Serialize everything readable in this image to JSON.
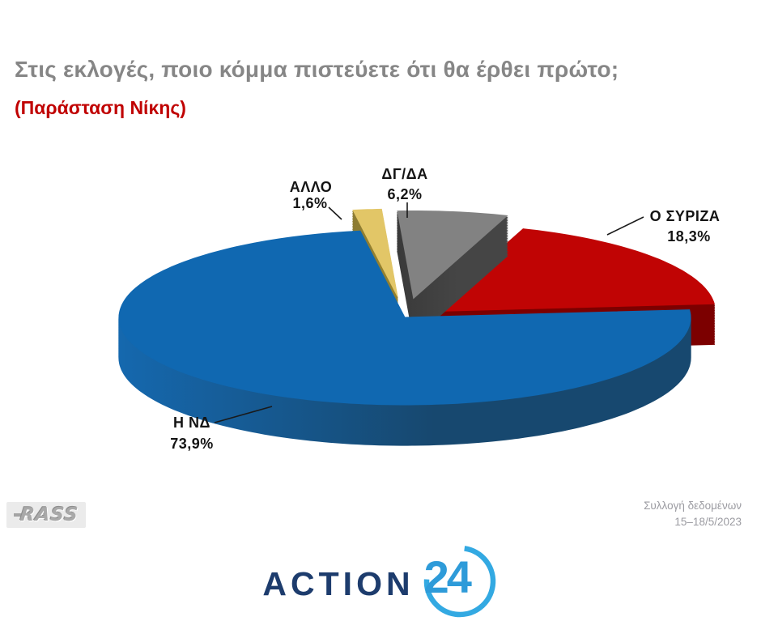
{
  "header": {
    "title": "Στις εκλογές, ποιο κόμμα πιστεύετε ότι θα έρθει πρώτο;",
    "subtitle": "(Παράσταση Νίκης)"
  },
  "chart_data": {
    "type": "pie",
    "style": "3d-exploded",
    "title": "Στις εκλογές, ποιο κόμμα πιστεύετε ότι θα έρθει πρώτο; (Παράσταση Νίκης)",
    "value_unit": "%",
    "labels_position": "outside-with-leader-lines",
    "legend": "none",
    "slices": [
      {
        "label": "Ο ΣΥΡΙΖΑ",
        "value": 18.3,
        "display_value": "18,3%",
        "color": "#c00404",
        "side_color": "#7c0000"
      },
      {
        "label": "ΔΓ/ΔΑ",
        "value": 6.2,
        "display_value": "6,2%",
        "color": "#828282",
        "side_color": "#454545",
        "side_color_light": "#3a3a3a"
      },
      {
        "label": "ΑΛΛΟ",
        "value": 1.6,
        "display_value": "1,6%",
        "color": "#e2c667",
        "side_color": "#93802f",
        "side_color_light": "#8d7c33"
      },
      {
        "label": "Η ΝΔ",
        "value": 73.9,
        "display_value": "73,9%",
        "color": "#1068b1",
        "side_color": "#17486f",
        "side_color_light": "#1568ae"
      }
    ]
  },
  "footer": {
    "agency_logo": "RASS",
    "collection_label": "Συλλογή δεδομένων",
    "collection_dates": "15–18/5/2023",
    "channel": {
      "word": "ACTION",
      "number": "24"
    }
  },
  "colors": {
    "background": "#ffffff",
    "title": "#868686",
    "subtitle": "#c00000",
    "label_text": "#141414",
    "leader_line": "#1a1a1a",
    "footer_text": "#9b9ba1",
    "action_word": "#1d3c6d",
    "action_number": "#2e9bd9",
    "action_arc": "#33a9e2",
    "rass_gray": "#a9a9a9"
  }
}
